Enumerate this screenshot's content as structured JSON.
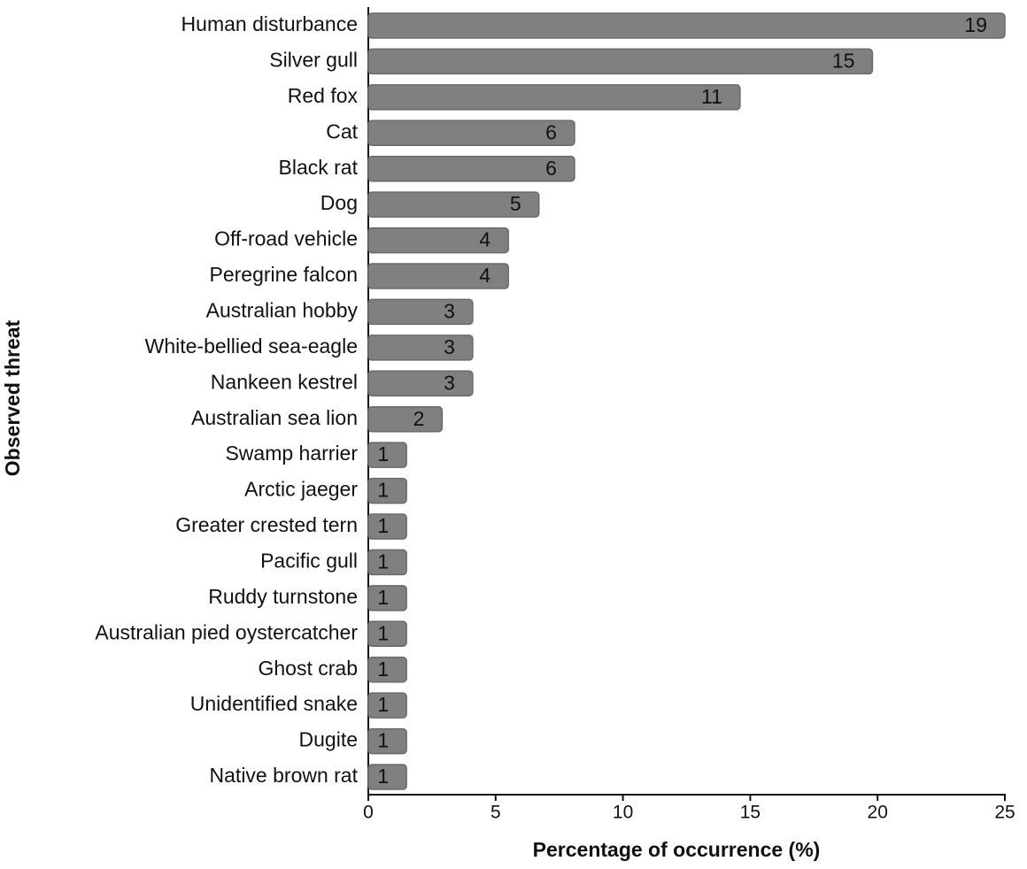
{
  "chart_data": {
    "type": "hbar",
    "x_label": "Percentage of occurrence (%)",
    "y_label": "Observed threat",
    "categories": [
      "Human disturbance",
      "Silver gull",
      "Red fox",
      "Cat",
      "Black rat",
      "Dog",
      "Off-road vehicle",
      "Peregrine falcon",
      "Australian hobby",
      "White-bellied sea-eagle",
      "Nankeen kestrel",
      "Australian sea lion",
      "Swamp harrier",
      "Arctic jaeger",
      "Greater crested tern",
      "Pacific gull",
      "Ruddy turnstone",
      "Australian pied oystercatcher",
      "Ghost crab",
      "Unidentified snake",
      "Dugite",
      "Native brown rat"
    ],
    "values": [
      25.0,
      19.8,
      14.6,
      8.1,
      8.1,
      6.7,
      5.5,
      5.5,
      4.1,
      4.1,
      4.1,
      2.9,
      1.5,
      1.5,
      1.5,
      1.5,
      1.5,
      1.5,
      1.5,
      1.5,
      1.5,
      1.5
    ],
    "counts": [
      19,
      15,
      11,
      6,
      6,
      5,
      4,
      4,
      3,
      3,
      3,
      2,
      1,
      1,
      1,
      1,
      1,
      1,
      1,
      1,
      1,
      1
    ],
    "color": "#808080",
    "xlim": [
      0,
      25
    ],
    "xticks": [
      0,
      5,
      10,
      15,
      20,
      25
    ],
    "grid": false
  }
}
